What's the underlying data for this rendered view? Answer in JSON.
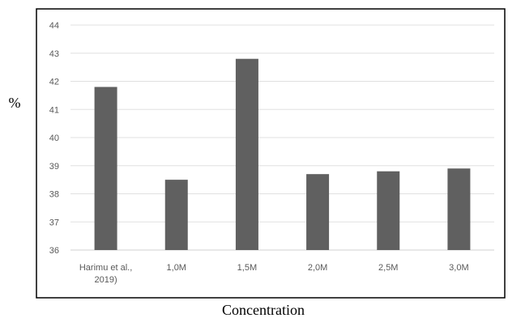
{
  "chart_data": {
    "type": "bar",
    "categories": [
      "Harimu et al., 2019)",
      "1,0M",
      "1,5M",
      "2,0M",
      "2,5M",
      "3,0M"
    ],
    "category_lines": [
      [
        "Harimu et al.,",
        "2019)"
      ],
      [
        "1,0M"
      ],
      [
        "1,5M"
      ],
      [
        "2,0M"
      ],
      [
        "2,5M"
      ],
      [
        "3,0M"
      ]
    ],
    "values": [
      41.8,
      38.5,
      42.8,
      38.7,
      38.8,
      38.9
    ],
    "title": "",
    "xlabel": "Concentration",
    "ylabel": "%",
    "ylim": [
      36,
      44
    ],
    "yticks": [
      36,
      37,
      38,
      39,
      40,
      41,
      42,
      43,
      44
    ],
    "grid": true,
    "legend": "none",
    "colors": {
      "bar": "#606060",
      "grid": "#e0e0e0",
      "frame": "#000000",
      "tick_text": "#595959"
    }
  }
}
